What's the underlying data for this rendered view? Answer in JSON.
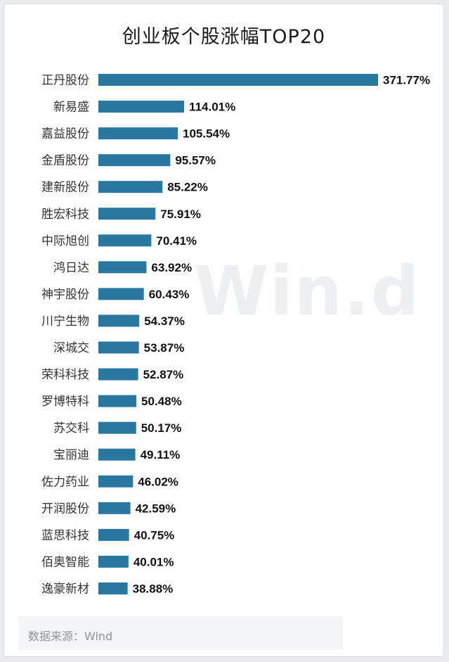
{
  "title": "创业板个股涨幅TOP20",
  "watermark": "Win.d",
  "source": "数据来源：Wind",
  "colors": {
    "bar": "#2a78a2",
    "label": "#111111",
    "category": "#333333"
  },
  "chart_data": {
    "type": "bar",
    "orientation": "horizontal",
    "title": "创业板个股涨幅TOP20",
    "categories": [
      "正丹股份",
      "新易盛",
      "嘉益股份",
      "金盾股份",
      "建新股份",
      "胜宏科技",
      "中际旭创",
      "鸿日达",
      "神宇股份",
      "川宁生物",
      "深城交",
      "荣科科技",
      "罗博特科",
      "苏交科",
      "宝丽迪",
      "佐力药业",
      "开润股份",
      "蓝思科技",
      "佰奥智能",
      "逸豪新材"
    ],
    "values": [
      371.77,
      114.01,
      105.54,
      95.57,
      85.22,
      75.91,
      70.41,
      63.92,
      60.43,
      54.37,
      53.87,
      52.87,
      50.48,
      50.17,
      49.11,
      46.02,
      42.59,
      40.75,
      40.01,
      38.88
    ],
    "value_labels": [
      "371.77%",
      "114.01%",
      "105.54%",
      "95.57%",
      "85.22%",
      "75.91%",
      "70.41%",
      "63.92%",
      "60.43%",
      "54.37%",
      "53.87%",
      "52.87%",
      "50.48%",
      "50.17%",
      "49.11%",
      "46.02%",
      "42.59%",
      "40.75%",
      "40.01%",
      "38.88%"
    ],
    "xlim": [
      0,
      371.77
    ],
    "grid": false
  }
}
